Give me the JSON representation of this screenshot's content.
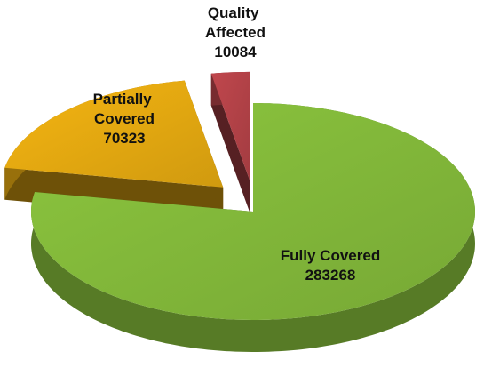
{
  "chart_data": {
    "type": "pie",
    "categories": [
      "Fully Covered",
      "Partially Covered",
      "Quality Affected"
    ],
    "values": [
      283268,
      70323,
      10084
    ],
    "colors": [
      "#8cc63e",
      "#f5b512",
      "#c0474d"
    ]
  }
}
